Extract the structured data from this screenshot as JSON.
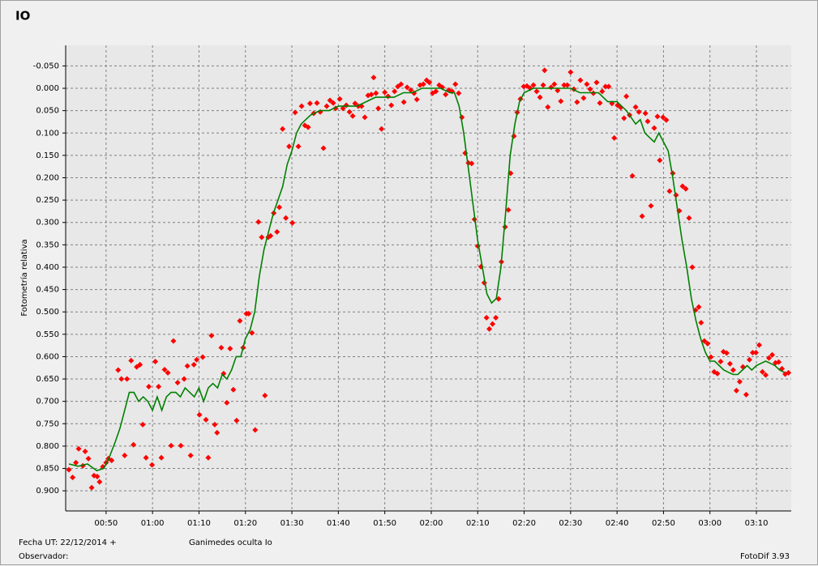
{
  "chart_data": {
    "type": "combo",
    "title": "IO",
    "title_color": "#e00000",
    "y_label": "Fotometría relativa",
    "xlim": [
      41.3,
      197.5
    ],
    "ylim": [
      -0.096,
      0.945
    ],
    "y_inverted": true,
    "grid": true,
    "xticks": [
      {
        "value": 50,
        "label": "00:50"
      },
      {
        "value": 60,
        "label": "01:00"
      },
      {
        "value": 70,
        "label": "01:10"
      },
      {
        "value": 80,
        "label": "01:20"
      },
      {
        "value": 90,
        "label": "01:30"
      },
      {
        "value": 100,
        "label": "01:40"
      },
      {
        "value": 110,
        "label": "01:50"
      },
      {
        "value": 120,
        "label": "02:00"
      },
      {
        "value": 130,
        "label": "02:10"
      },
      {
        "value": 140,
        "label": "02:20"
      },
      {
        "value": 150,
        "label": "02:30"
      },
      {
        "value": 160,
        "label": "02:40"
      },
      {
        "value": 170,
        "label": "02:50"
      },
      {
        "value": 180,
        "label": "03:00"
      },
      {
        "value": 190,
        "label": "03:10"
      }
    ],
    "yticks": [
      {
        "value": -0.05,
        "label": "-0.050"
      },
      {
        "value": 0,
        "label": "0.000"
      },
      {
        "value": 0.05,
        "label": "0.050"
      },
      {
        "value": 0.1,
        "label": "0.100"
      },
      {
        "value": 0.15,
        "label": "0.150"
      },
      {
        "value": 0.2,
        "label": "0.200"
      },
      {
        "value": 0.25,
        "label": "0.250"
      },
      {
        "value": 0.3,
        "label": "0.300"
      },
      {
        "value": 0.35,
        "label": "0.350"
      },
      {
        "value": 0.4,
        "label": "0.400"
      },
      {
        "value": 0.45,
        "label": "0.450"
      },
      {
        "value": 0.5,
        "label": "0.500"
      },
      {
        "value": 0.55,
        "label": "0.550"
      },
      {
        "value": 0.6,
        "label": "0.600"
      },
      {
        "value": 0.65,
        "label": "0.650"
      },
      {
        "value": 0.7,
        "label": "0.700"
      },
      {
        "value": 0.75,
        "label": "0.750"
      },
      {
        "value": 0.8,
        "label": "0.800"
      },
      {
        "value": 0.85,
        "label": "0.850"
      },
      {
        "value": 0.9,
        "label": "0.900"
      }
    ],
    "series": [
      {
        "type": "scatter",
        "color": "#ff0000",
        "x": [
          42.0,
          42.8,
          43.5,
          44.1,
          45.0,
          45.5,
          46.2,
          46.9,
          47.4,
          48.1,
          48.6,
          49.3,
          50.0,
          50.5,
          51.2,
          52.6,
          53.3,
          54.0,
          54.5,
          55.4,
          55.9,
          56.6,
          57.3,
          57.9,
          58.6,
          59.2,
          59.9,
          60.6,
          61.3,
          61.9,
          62.6,
          63.3,
          64.0,
          64.5,
          65.4,
          66.1,
          66.8,
          67.5,
          68.2,
          68.9,
          69.5,
          70.1,
          70.8,
          71.5,
          72.0,
          72.7,
          73.4,
          73.9,
          74.8,
          75.3,
          76.0,
          76.7,
          77.4,
          78.1,
          78.8,
          79.5,
          80.2,
          80.7,
          81.4,
          82.1,
          82.8,
          83.5,
          84.2,
          84.9,
          85.4,
          86.1,
          86.8,
          87.3,
          88.0,
          88.7,
          89.4,
          90.1,
          90.7,
          91.4,
          92.1,
          92.8,
          93.5,
          93.9,
          94.7,
          95.4,
          96.1,
          96.8,
          97.5,
          98.2,
          98.9,
          99.4,
          100.3,
          101.0,
          101.7,
          102.4,
          103.1,
          103.6,
          104.3,
          105.0,
          105.7,
          106.4,
          107.1,
          107.6,
          108.1,
          108.6,
          109.3,
          110.0,
          110.7,
          111.4,
          112.1,
          112.8,
          113.5,
          114.1,
          114.8,
          115.6,
          116.3,
          116.9,
          117.6,
          118.3,
          119.0,
          119.6,
          120.3,
          121.0,
          121.7,
          122.4,
          123.1,
          123.8,
          124.5,
          125.2,
          125.9,
          126.6,
          127.3,
          128.0,
          128.7,
          129.3,
          130.0,
          130.7,
          131.4,
          131.9,
          132.5,
          133.2,
          133.9,
          134.5,
          135.1,
          135.9,
          136.6,
          137.1,
          137.8,
          138.5,
          139.2,
          139.9,
          140.6,
          141.3,
          142.0,
          142.7,
          143.4,
          144.1,
          144.4,
          145.1,
          145.8,
          146.5,
          147.2,
          147.9,
          148.6,
          149.3,
          150.0,
          150.7,
          151.4,
          152.1,
          152.8,
          153.5,
          154.2,
          154.9,
          155.6,
          156.3,
          156.8,
          157.5,
          158.2,
          158.9,
          159.4,
          160.1,
          160.8,
          161.5,
          162.0,
          162.7,
          163.3,
          164.0,
          164.7,
          165.4,
          166.1,
          166.6,
          167.3,
          168.0,
          168.7,
          169.2,
          169.9,
          170.6,
          171.3,
          172.0,
          172.7,
          173.4,
          174.1,
          174.8,
          175.5,
          176.2,
          176.9,
          177.6,
          178.1,
          178.8,
          179.5,
          180.2,
          180.9,
          181.6,
          182.3,
          182.9,
          183.6,
          184.3,
          185.0,
          185.7,
          186.4,
          187.1,
          187.8,
          188.5,
          189.2,
          189.9,
          190.6,
          191.3,
          192.0,
          192.7,
          193.4,
          194.1,
          194.8,
          195.5,
          196.2,
          196.9
        ],
        "values": [
          0.853,
          0.87,
          0.837,
          0.806,
          0.844,
          0.812,
          0.828,
          0.893,
          0.866,
          0.868,
          0.88,
          0.846,
          0.837,
          0.828,
          0.832,
          0.63,
          0.65,
          0.821,
          0.65,
          0.609,
          0.797,
          0.623,
          0.618,
          0.752,
          0.826,
          0.667,
          0.842,
          0.611,
          0.667,
          0.826,
          0.629,
          0.636,
          0.799,
          0.565,
          0.658,
          0.799,
          0.65,
          0.621,
          0.821,
          0.618,
          0.607,
          0.73,
          0.601,
          0.741,
          0.826,
          0.553,
          0.752,
          0.77,
          0.58,
          0.638,
          0.703,
          0.582,
          0.674,
          0.743,
          0.52,
          0.58,
          0.504,
          0.504,
          0.547,
          0.764,
          0.299,
          0.333,
          0.687,
          0.333,
          0.33,
          0.279,
          0.321,
          0.266,
          0.091,
          0.29,
          0.13,
          0.301,
          0.054,
          0.13,
          0.04,
          0.083,
          0.087,
          0.034,
          0.056,
          0.033,
          0.053,
          0.134,
          0.04,
          0.027,
          0.033,
          0.045,
          0.024,
          0.045,
          0.038,
          0.053,
          0.062,
          0.034,
          0.04,
          0.04,
          0.065,
          0.016,
          0.014,
          -0.024,
          0.011,
          0.045,
          0.091,
          0.009,
          0.018,
          0.038,
          0.007,
          -0.004,
          -0.009,
          0.031,
          -0.002,
          0.004,
          0.011,
          0.025,
          -0.007,
          -0.009,
          -0.018,
          -0.013,
          0.011,
          0.007,
          -0.007,
          -0.002,
          0.014,
          0.004,
          0.007,
          -0.009,
          0.011,
          0.065,
          0.145,
          0.167,
          0.168,
          0.293,
          0.353,
          0.399,
          0.435,
          0.513,
          0.538,
          0.527,
          0.513,
          0.471,
          0.388,
          0.31,
          0.272,
          0.19,
          0.107,
          0.054,
          0.024,
          -0.004,
          -0.005,
          0.0,
          -0.007,
          0.007,
          0.02,
          -0.007,
          -0.04,
          0.042,
          -0.002,
          -0.009,
          0.005,
          0.029,
          -0.007,
          -0.007,
          -0.036,
          0.002,
          0.031,
          -0.018,
          0.022,
          -0.009,
          0.002,
          0.011,
          -0.013,
          0.033,
          0.007,
          -0.004,
          -0.004,
          0.034,
          0.111,
          0.038,
          0.043,
          0.067,
          0.018,
          0.06,
          0.196,
          0.042,
          0.053,
          0.286,
          0.056,
          0.074,
          0.263,
          0.089,
          0.063,
          0.161,
          0.065,
          0.071,
          0.23,
          0.19,
          0.239,
          0.274,
          0.219,
          0.225,
          0.29,
          0.4,
          0.496,
          0.489,
          0.524,
          0.565,
          0.571,
          0.601,
          0.634,
          0.638,
          0.611,
          0.589,
          0.592,
          0.616,
          0.63,
          0.676,
          0.656,
          0.623,
          0.685,
          0.607,
          0.591,
          0.591,
          0.574,
          0.634,
          0.641,
          0.603,
          0.596,
          0.614,
          0.612,
          0.627,
          0.639,
          0.636
        ]
      },
      {
        "type": "line",
        "color": "#008000",
        "x": [
          42,
          44,
          46,
          48,
          49.5,
          50.5,
          52,
          53,
          54,
          55,
          56,
          57,
          58,
          59,
          60,
          61,
          62,
          63,
          64,
          65,
          66,
          67,
          68,
          69,
          70,
          71,
          72,
          73,
          74,
          75,
          76,
          77,
          78,
          79,
          80,
          81,
          82,
          83,
          84,
          85,
          86,
          87,
          88,
          89,
          90,
          91,
          92,
          93,
          94,
          96,
          98,
          100,
          102,
          104,
          106,
          108,
          110,
          112,
          114,
          116,
          118,
          120,
          122,
          124,
          125,
          126,
          127,
          128,
          129,
          130,
          131,
          132,
          133,
          134,
          135,
          136,
          137,
          138,
          139,
          140,
          142,
          144,
          146,
          148,
          150,
          152,
          154,
          156,
          158,
          160,
          162,
          164,
          165,
          166,
          167,
          168,
          169,
          170,
          171,
          172,
          173,
          174,
          175,
          176,
          177,
          178,
          179,
          180,
          181,
          182,
          183,
          184,
          185,
          186,
          187,
          188,
          189,
          190,
          191,
          192,
          193,
          194,
          195,
          196
        ],
        "values": [
          0.84,
          0.845,
          0.84,
          0.855,
          0.85,
          0.83,
          0.79,
          0.76,
          0.72,
          0.68,
          0.68,
          0.7,
          0.69,
          0.7,
          0.72,
          0.69,
          0.72,
          0.69,
          0.68,
          0.68,
          0.69,
          0.67,
          0.68,
          0.69,
          0.67,
          0.7,
          0.67,
          0.66,
          0.67,
          0.64,
          0.65,
          0.63,
          0.6,
          0.6,
          0.56,
          0.54,
          0.5,
          0.42,
          0.36,
          0.32,
          0.28,
          0.25,
          0.22,
          0.17,
          0.14,
          0.1,
          0.08,
          0.07,
          0.06,
          0.05,
          0.05,
          0.04,
          0.04,
          0.04,
          0.03,
          0.02,
          0.02,
          0.02,
          0.01,
          0.01,
          0.0,
          0.0,
          0.0,
          0.01,
          0.01,
          0.04,
          0.1,
          0.18,
          0.26,
          0.34,
          0.4,
          0.46,
          0.48,
          0.47,
          0.4,
          0.28,
          0.15,
          0.08,
          0.03,
          0.01,
          0.0,
          0.0,
          0.0,
          0.0,
          0.0,
          0.01,
          0.01,
          0.01,
          0.03,
          0.03,
          0.05,
          0.08,
          0.07,
          0.1,
          0.11,
          0.12,
          0.1,
          0.12,
          0.14,
          0.2,
          0.27,
          0.34,
          0.4,
          0.47,
          0.52,
          0.56,
          0.59,
          0.61,
          0.61,
          0.62,
          0.63,
          0.635,
          0.64,
          0.64,
          0.63,
          0.62,
          0.63,
          0.62,
          0.615,
          0.61,
          0.615,
          0.62,
          0.63,
          0.635
        ]
      }
    ]
  },
  "footer": {
    "date": "Fecha UT: 22/12/2014 +",
    "event": "Ganimedes oculta Io",
    "observer": "Observador:",
    "software": "FotoDif 3.93"
  }
}
